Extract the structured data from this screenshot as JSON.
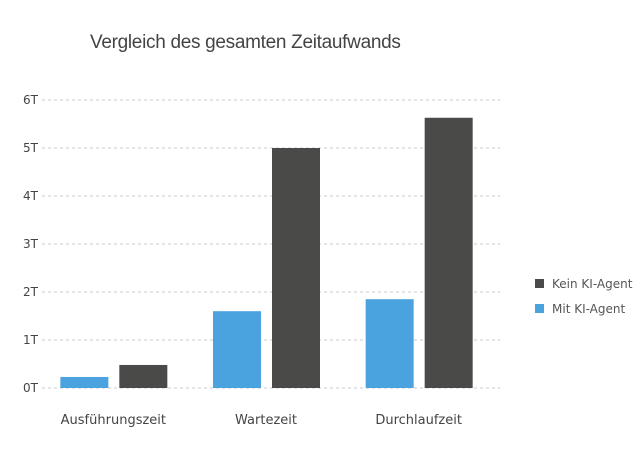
{
  "chart_data": {
    "type": "bar",
    "title": "Vergleich des gesamten Zeitaufwands",
    "xlabel": "",
    "ylabel": "",
    "categories": [
      "Ausführungszeit",
      "Wartezeit",
      "Durchlaufzeit"
    ],
    "series": [
      {
        "name": "Mit KI-Agent",
        "color": "#4aa3df",
        "values": [
          0.23,
          1.6,
          1.85
        ]
      },
      {
        "name": "Kein KI-Agent",
        "color": "#4a4a48",
        "values": [
          0.48,
          5.0,
          5.63
        ]
      }
    ],
    "legend_order": [
      "Kein KI-Agent",
      "Mit KI-Agent"
    ],
    "ylim": [
      0,
      6
    ],
    "yticks": [
      0,
      1,
      2,
      3,
      4,
      5,
      6
    ],
    "ytick_labels": [
      "0T",
      "1T",
      "2T",
      "3T",
      "4T",
      "5T",
      "6T"
    ],
    "grid": true,
    "legend_position": "right"
  }
}
